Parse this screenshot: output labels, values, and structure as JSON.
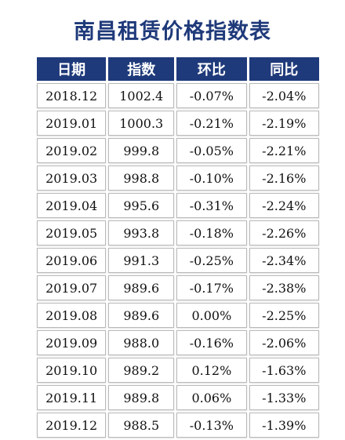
{
  "title": "南昌租赁价格指数表",
  "table": {
    "headers": [
      "日期",
      "指数",
      "环比",
      "同比"
    ],
    "rows": [
      [
        "2018.12",
        "1002.4",
        "-0.07%",
        "-2.04%"
      ],
      [
        "2019.01",
        "1000.3",
        "-0.21%",
        "-2.19%"
      ],
      [
        "2019.02",
        "999.8",
        "-0.05%",
        "-2.21%"
      ],
      [
        "2019.03",
        "998.8",
        "-0.10%",
        "-2.16%"
      ],
      [
        "2019.04",
        "995.6",
        "-0.31%",
        "-2.24%"
      ],
      [
        "2019.05",
        "993.8",
        "-0.18%",
        "-2.26%"
      ],
      [
        "2019.06",
        "991.3",
        "-0.25%",
        "-2.34%"
      ],
      [
        "2019.07",
        "989.6",
        "-0.17%",
        "-2.38%"
      ],
      [
        "2019.08",
        "989.6",
        "0.00%",
        "-2.25%"
      ],
      [
        "2019.09",
        "988.0",
        "-0.16%",
        "-2.06%"
      ],
      [
        "2019.10",
        "989.2",
        "0.12%",
        "-1.63%"
      ],
      [
        "2019.11",
        "989.8",
        "0.06%",
        "-1.33%"
      ],
      [
        "2019.12",
        "988.5",
        "-0.13%",
        "-1.39%"
      ]
    ]
  },
  "colors": {
    "header_bg": "#1f3a7a",
    "title": "#1f3a7a",
    "cell_border": "#b9b9b9"
  }
}
